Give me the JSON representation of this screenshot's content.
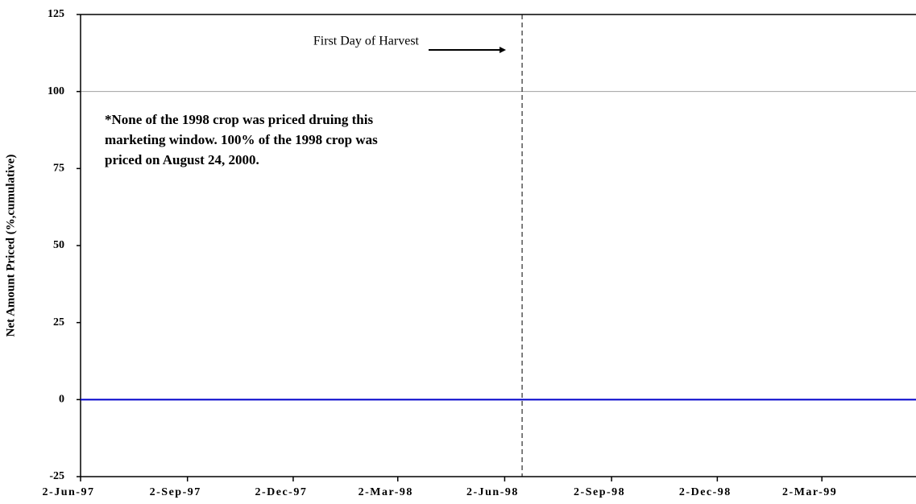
{
  "chart_data": {
    "type": "line",
    "y_label": "Net Amount Priced (%,cumulative)",
    "annotation": "First Day of Harvest",
    "annotation_date": "1998-06-17",
    "note": [
      "*None of the 1998 crop was priced druing this",
      "marketing window.  100% of the 1998 crop was",
      "priced on August 24, 2000."
    ],
    "reference_lines": [
      100
    ],
    "xlim": [
      "1997-06-02",
      "1999-05-22"
    ],
    "xticks": [
      {
        "value": "1997-06-02",
        "label": "2-Jun-97"
      },
      {
        "value": "1997-09-02",
        "label": "2-Sep-97"
      },
      {
        "value": "1997-12-02",
        "label": "2-Dec-97"
      },
      {
        "value": "1998-03-02",
        "label": "2-Mar-98"
      },
      {
        "value": "1998-06-02",
        "label": "2-Jun-98"
      },
      {
        "value": "1998-09-02",
        "label": "2-Sep-98"
      },
      {
        "value": "1998-12-02",
        "label": "2-Dec-98"
      },
      {
        "value": "1999-03-02",
        "label": "2-Mar-99"
      }
    ],
    "ylim": [
      -25,
      125
    ],
    "yticks": [
      -25,
      0,
      25,
      50,
      75,
      100,
      125
    ],
    "series": [
      {
        "color": "#0000cc",
        "x": [
          "1997-06-02",
          "1999-05-22"
        ],
        "values": [
          0,
          0
        ]
      }
    ]
  }
}
